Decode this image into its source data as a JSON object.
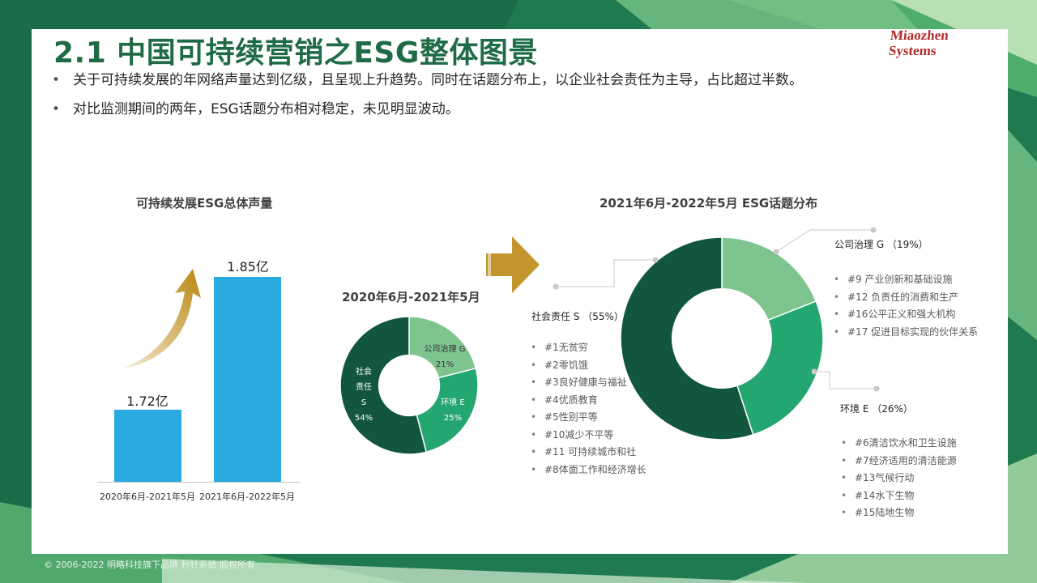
{
  "page": {
    "title": "2.1 中国可持续营销之ESG整体图景",
    "logo": {
      "line1": "Miaozhen",
      "line2": "Systems"
    },
    "bullets": [
      "关于可持续发展的年网络声量达到亿级，且呈现上升趋势。同时在话题分布上，以企业社会责任为主导，占比超过半数。",
      "对比监测期间的两年，ESG话题分布相对稳定，未见明显波动。"
    ],
    "footer": "© 2006-2022 明略科技旗下品牌 秒针系统 版权所有"
  },
  "colors": {
    "title": "#1e6b46",
    "bar": "#29abe2",
    "social": "#12573d",
    "governance": "#7dc48e",
    "environment": "#24a670",
    "arrow": "#c2962c",
    "logo": "#b32a2a"
  },
  "bar_chart": {
    "title": "可持续发展ESG总体声量",
    "trend_icon": "rising-arrow-icon"
  },
  "donut_small": {
    "title": "2020年6月-2021年5月",
    "labels": {
      "social": [
        "社会",
        "责任",
        "S",
        "54%"
      ],
      "governance": [
        "公司治理 G",
        "21%"
      ],
      "environment": [
        "环境 E",
        "25%"
      ]
    }
  },
  "transition_icon": "chevron-arrow-right-icon",
  "donut_large": {
    "title": "2021年6月-2022年5月 ESG话题分布",
    "governance": {
      "title": "公司治理 G （19%）",
      "items": [
        "#9 产业创新和基础设施",
        "#12 负责任的消费和生产",
        "#16公平正义和强大机构",
        "#17 促进目标实现的伙伴关系"
      ]
    },
    "social": {
      "title": "社会责任 S （55%）",
      "items": [
        "#1无贫穷",
        "#2零饥饿",
        "#3良好健康与福祉",
        "#4优质教育",
        "#5性别平等",
        "#10减少不平等",
        "#11 可持续城市和社",
        "#8体面工作和经济增长"
      ]
    },
    "environment": {
      "title": "环境 E （26%）",
      "items": [
        "#6清洁饮水和卫生设施",
        "#7经济适用的清洁能源",
        "#13气候行动",
        "#14水下生物",
        "#15陆地生物"
      ]
    }
  },
  "chart_data": [
    {
      "type": "bar",
      "title": "可持续发展ESG总体声量",
      "categories": [
        "2020年6月-2021年5月",
        "2021年6月-2022年5月"
      ],
      "values": [
        1.72,
        1.85
      ],
      "value_labels": [
        "1.72亿",
        "1.85亿"
      ],
      "xlabel": "",
      "ylabel": ""
    },
    {
      "type": "pie",
      "title": "2020年6月-2021年5月",
      "labels": [
        "公司治理 G",
        "环境 E",
        "社会责任 S"
      ],
      "values": [
        21,
        25,
        54
      ]
    },
    {
      "type": "pie",
      "title": "2021年6月-2022年5月 ESG话题分布",
      "labels": [
        "公司治理 G",
        "环境 E",
        "社会责任 S"
      ],
      "values": [
        19,
        26,
        55
      ]
    }
  ]
}
